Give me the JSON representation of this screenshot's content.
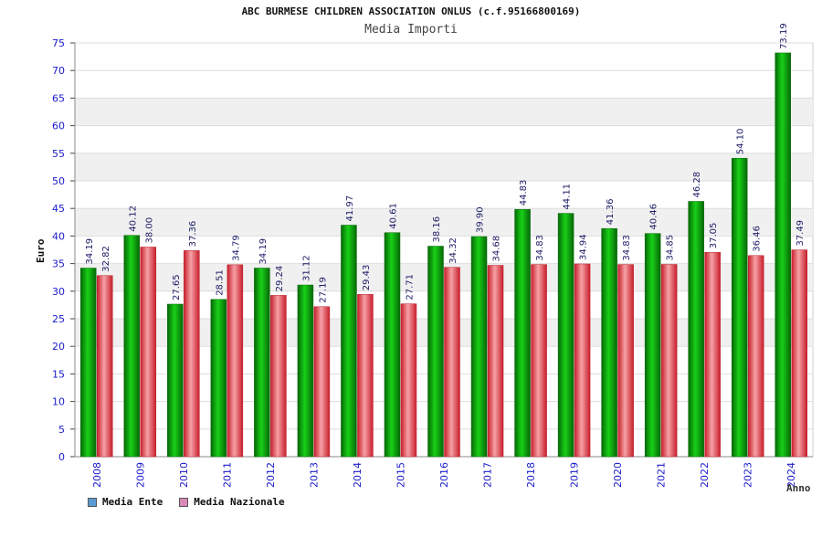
{
  "chart_data": {
    "type": "bar",
    "title": "ABC BURMESE CHILDREN ASSOCIATION ONLUS (c.f.95166800169)",
    "subtitle": "Media Importi",
    "xlabel": "Anno",
    "ylabel": "Euro",
    "ylim": [
      0,
      75
    ],
    "yticks": [
      0,
      5,
      10,
      15,
      20,
      25,
      30,
      35,
      40,
      45,
      50,
      55,
      60,
      65,
      70,
      75
    ],
    "grid": true,
    "legend_position": "bottom-left",
    "categories": [
      "2008",
      "2009",
      "2010",
      "2011",
      "2012",
      "2013",
      "2014",
      "2015",
      "2016",
      "2017",
      "2018",
      "2019",
      "2020",
      "2021",
      "2022",
      "2023",
      "2024"
    ],
    "series": [
      {
        "name": "Media Ente",
        "color": "#0aa50a",
        "legend_color": "#5b9bd5",
        "values": [
          34.19,
          40.12,
          27.65,
          28.51,
          34.19,
          31.12,
          41.97,
          40.61,
          38.16,
          39.9,
          44.83,
          44.11,
          41.36,
          40.46,
          46.28,
          54.1,
          73.19
        ],
        "labels": [
          "34.19",
          "40.12",
          "27.65",
          "28.51",
          "34.19",
          "31.12",
          "41.97",
          "40.61",
          "38.16",
          "39.90",
          "44.83",
          "44.11",
          "41.36",
          "40.46",
          "46.28",
          "54.10",
          "73.19"
        ]
      },
      {
        "name": "Media Nazionale",
        "color": "#e8414c",
        "legend_color": "#d98ab8",
        "values": [
          32.82,
          38.0,
          37.36,
          34.79,
          29.24,
          27.19,
          29.43,
          27.71,
          34.32,
          34.68,
          34.83,
          34.94,
          34.83,
          34.85,
          37.05,
          36.46,
          37.49
        ],
        "labels": [
          "32.82",
          "38.00",
          "37.36",
          "34.79",
          "29.24",
          "27.19",
          "29.43",
          "27.71",
          "34.32",
          "34.68",
          "34.83",
          "34.94",
          "34.83",
          "34.85",
          "37.05",
          "36.46",
          "37.49"
        ]
      }
    ],
    "colors": {
      "axis_text": "#1a1acc",
      "value_label": "#1a1a66",
      "grid_band": "#f0f0f0",
      "grid_line": "#dddddd"
    }
  }
}
